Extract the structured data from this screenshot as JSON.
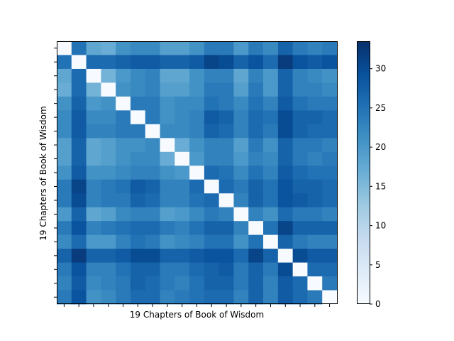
{
  "chart_data": {
    "type": "heatmap",
    "title": "",
    "xlabel": "19 Chapters of Book of Wisdom",
    "ylabel": "19 Chapters of Book of Wisdom",
    "show_x_tick_labels": false,
    "show_y_tick_labels": false,
    "grid": false,
    "colormap": "Blues",
    "colors": {
      "low": "#f7fbff",
      "mid": "#4292c6",
      "high": "#08306b"
    },
    "vmin": 0,
    "vmax": 33.5,
    "colorbar": {
      "ticks": [
        0,
        5,
        10,
        15,
        20,
        25,
        30
      ],
      "tick_labels": [
        "0",
        "5",
        "10",
        "15",
        "20",
        "25",
        "30"
      ]
    },
    "matrix": [
      [
        0,
        25,
        18,
        17,
        21,
        22,
        22,
        19,
        19,
        21,
        24,
        24,
        20,
        24,
        22,
        27,
        24,
        23,
        24
      ],
      [
        25,
        0,
        26,
        26,
        27,
        28,
        28,
        27,
        27,
        28,
        31,
        30,
        27,
        29,
        26,
        32,
        29,
        28,
        29
      ],
      [
        18,
        26,
        0,
        16,
        20,
        22,
        23,
        18,
        18,
        21,
        23,
        23,
        18,
        23,
        20,
        27,
        23,
        22,
        21
      ],
      [
        17,
        26,
        16,
        0,
        21,
        22,
        23,
        19,
        19,
        21,
        24,
        24,
        19,
        24,
        20,
        27,
        23,
        23,
        22
      ],
      [
        21,
        27,
        20,
        21,
        0,
        24,
        24,
        21,
        22,
        22,
        25,
        24,
        22,
        25,
        23,
        28,
        25,
        24,
        24
      ],
      [
        22,
        28,
        22,
        22,
        24,
        0,
        24,
        21,
        22,
        23,
        28,
        27,
        23,
        26,
        25,
        30,
        27,
        27,
        26
      ],
      [
        22,
        28,
        23,
        23,
        24,
        24,
        0,
        22,
        22,
        23,
        27,
        26,
        23,
        26,
        24,
        30,
        27,
        26,
        26
      ],
      [
        19,
        27,
        18,
        19,
        21,
        21,
        22,
        0,
        17,
        21,
        23,
        23,
        19,
        24,
        21,
        27,
        24,
        24,
        23
      ],
      [
        19,
        27,
        18,
        19,
        21,
        22,
        22,
        17,
        0,
        20,
        23,
        23,
        20,
        23,
        22,
        27,
        24,
        23,
        24
      ],
      [
        21,
        28,
        21,
        21,
        22,
        23,
        23,
        21,
        20,
        0,
        26,
        25,
        22,
        25,
        23,
        28,
        26,
        25,
        25
      ],
      [
        24,
        31,
        23,
        24,
        25,
        28,
        27,
        23,
        23,
        26,
        0,
        26,
        24,
        27,
        25,
        29,
        27,
        27,
        26
      ],
      [
        24,
        30,
        23,
        24,
        24,
        27,
        26,
        23,
        23,
        25,
        26,
        0,
        23,
        27,
        25,
        29,
        28,
        27,
        26
      ],
      [
        20,
        27,
        18,
        19,
        22,
        23,
        23,
        19,
        20,
        22,
        24,
        23,
        0,
        23,
        21,
        26,
        24,
        24,
        23
      ],
      [
        24,
        29,
        23,
        24,
        25,
        26,
        26,
        24,
        23,
        25,
        27,
        27,
        23,
        0,
        25,
        31,
        27,
        27,
        27
      ],
      [
        22,
        26,
        20,
        20,
        23,
        25,
        24,
        21,
        22,
        23,
        25,
        25,
        21,
        25,
        0,
        27,
        24,
        23,
        23
      ],
      [
        27,
        32,
        27,
        27,
        28,
        30,
        30,
        27,
        27,
        28,
        29,
        29,
        26,
        31,
        27,
        0,
        30,
        28,
        28
      ],
      [
        24,
        29,
        23,
        23,
        25,
        27,
        27,
        24,
        24,
        26,
        27,
        28,
        24,
        27,
        24,
        30,
        0,
        26,
        26
      ],
      [
        23,
        28,
        22,
        23,
        24,
        27,
        26,
        24,
        23,
        25,
        27,
        27,
        24,
        27,
        23,
        28,
        26,
        0,
        24
      ],
      [
        24,
        29,
        21,
        22,
        24,
        26,
        26,
        23,
        24,
        25,
        26,
        26,
        23,
        27,
        23,
        28,
        26,
        24,
        0
      ]
    ]
  }
}
